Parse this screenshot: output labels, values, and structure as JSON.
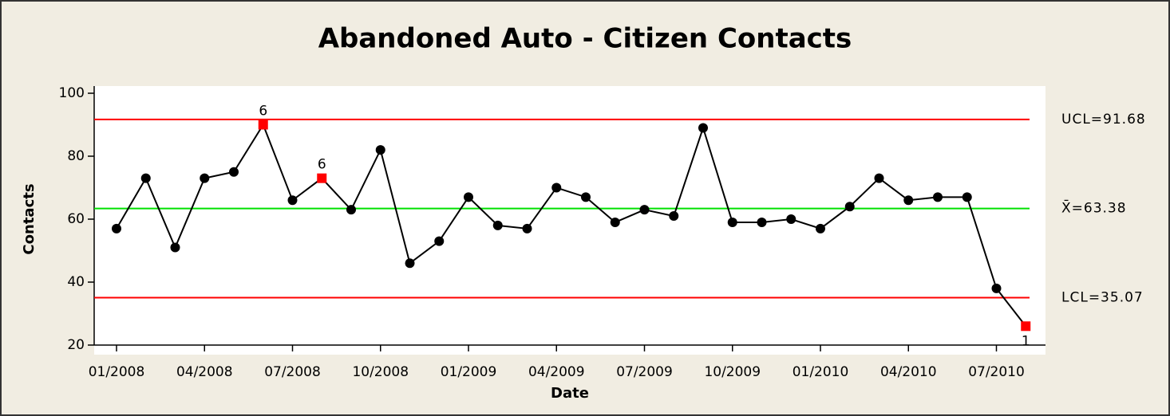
{
  "chart_data": {
    "type": "control",
    "title": "Abandoned Auto - Citizen Contacts",
    "x_label": "Date",
    "y_label": "Contacts",
    "categories": [
      "01/2008",
      null,
      null,
      "04/2008",
      null,
      null,
      "07/2008",
      null,
      null,
      "10/2008",
      null,
      null,
      "01/2009",
      null,
      null,
      "04/2009",
      null,
      null,
      "07/2009",
      null,
      null,
      "10/2009",
      null,
      null,
      "01/2010",
      null,
      null,
      "04/2010",
      null,
      null,
      "07/2010",
      null
    ],
    "values": [
      57,
      73,
      51,
      73,
      75,
      90,
      66,
      73,
      63,
      82,
      46,
      53,
      67,
      58,
      57,
      70,
      67,
      59,
      63,
      61,
      89,
      59,
      59,
      60,
      57,
      64,
      73,
      66,
      67,
      67,
      38,
      26
    ],
    "point_labels": [
      null,
      null,
      null,
      null,
      null,
      "6",
      null,
      "6",
      null,
      null,
      null,
      null,
      null,
      null,
      null,
      null,
      null,
      null,
      null,
      null,
      null,
      null,
      null,
      null,
      null,
      null,
      null,
      null,
      null,
      null,
      null,
      "1"
    ],
    "color": "#000000",
    "flag_color": "#ff0000",
    "control_lines": [
      {
        "label": "UCL=91.68",
        "value": 91.68,
        "color": "#ff0000"
      },
      {
        "label": "X̄=63.38",
        "value": 63.38,
        "color": "#00e000"
      },
      {
        "label": "LCL=35.07",
        "value": 35.07,
        "color": "#ff0000"
      }
    ],
    "ylim": [
      20,
      100
    ],
    "yticks": [
      20,
      40,
      60,
      80,
      100
    ]
  }
}
